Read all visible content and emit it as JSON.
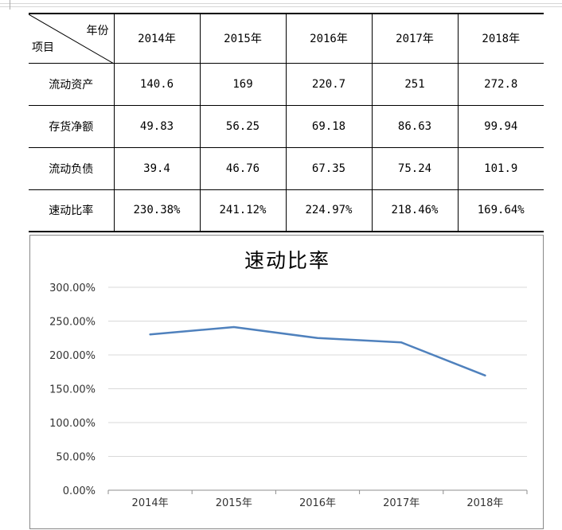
{
  "table": {
    "corner_top": "年份",
    "corner_bottom": "项目",
    "years": [
      "2014年",
      "2015年",
      "2016年",
      "2017年",
      "2018年"
    ],
    "rows": [
      {
        "label": "流动资产",
        "values": [
          "140.6",
          "169",
          "220.7",
          "251",
          "272.8"
        ]
      },
      {
        "label": "存货净额",
        "values": [
          "49.83",
          "56.25",
          "69.18",
          "86.63",
          "99.94"
        ]
      },
      {
        "label": "流动负债",
        "values": [
          "39.4",
          "46.76",
          "67.35",
          "75.24",
          "101.9"
        ]
      },
      {
        "label": "速动比率",
        "values": [
          "230.38%",
          "241.12%",
          "224.97%",
          "218.46%",
          "169.64%"
        ]
      }
    ]
  },
  "chart_data": {
    "type": "line",
    "title": "速动比率",
    "categories": [
      "2014年",
      "2015年",
      "2016年",
      "2017年",
      "2018年"
    ],
    "series": [
      {
        "values": [
          230.38,
          241.12,
          224.97,
          218.46,
          169.64
        ],
        "color": "#4f81bd"
      }
    ],
    "ylim": [
      0,
      300
    ],
    "yticks": [
      "0.00%",
      "50.00%",
      "100.00%",
      "150.00%",
      "200.00%",
      "250.00%",
      "300.00%"
    ],
    "ytick_values": [
      0,
      50,
      100,
      150,
      200,
      250,
      300
    ],
    "grid": true,
    "legend": "none"
  }
}
